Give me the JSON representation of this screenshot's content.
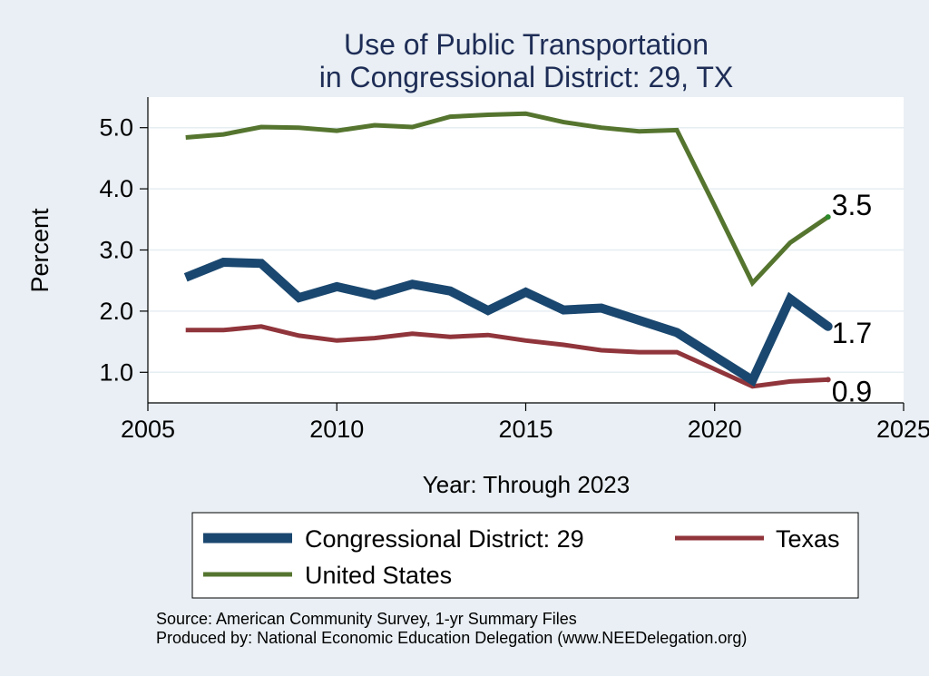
{
  "chart_data": {
    "type": "line",
    "title_lines": [
      "Use of Public Transportation",
      "in Congressional District: 29, TX"
    ],
    "xlabel": "Year: Through 2023",
    "ylabel": "Percent",
    "xlim": [
      2005,
      2025
    ],
    "ylim": [
      0.5,
      5.5
    ],
    "x_ticks": [
      2005,
      2010,
      2015,
      2020,
      2025
    ],
    "y_ticks": [
      1.0,
      2.0,
      3.0,
      4.0,
      5.0
    ],
    "y_tick_labels": [
      "1.0",
      "2.0",
      "3.0",
      "4.0",
      "5.0"
    ],
    "grid": "horizontal",
    "legend_position": "bottom",
    "x": [
      2006,
      2007,
      2008,
      2009,
      2010,
      2011,
      2012,
      2013,
      2014,
      2015,
      2016,
      2017,
      2018,
      2019,
      2020,
      2021,
      2022,
      2023
    ],
    "series": [
      {
        "name": "Congressional District: 29",
        "color": "#1a476f",
        "values": [
          2.55,
          2.8,
          2.78,
          2.22,
          2.4,
          2.26,
          2.44,
          2.33,
          2.01,
          2.31,
          2.02,
          2.05,
          1.85,
          1.65,
          1.26,
          0.87,
          2.2,
          1.75
        ],
        "end_label": "1.7"
      },
      {
        "name": "Texas",
        "color": "#90353b",
        "values": [
          1.69,
          1.69,
          1.75,
          1.6,
          1.52,
          1.56,
          1.63,
          1.58,
          1.61,
          1.52,
          1.45,
          1.36,
          1.33,
          1.33,
          1.05,
          0.77,
          0.85,
          0.88
        ],
        "end_label": "0.9"
      },
      {
        "name": "United States",
        "color": "#55752f",
        "values": [
          4.84,
          4.89,
          5.01,
          5.0,
          4.95,
          5.04,
          5.01,
          5.18,
          5.21,
          5.23,
          5.09,
          5.0,
          4.94,
          4.96,
          3.72,
          2.46,
          3.12,
          3.54
        ],
        "end_label": "3.5"
      }
    ],
    "source_lines": [
      "Source: American Community Survey, 1-yr Summary Files",
      "Produced by: National Economic Education Delegation (www.NEEDelegation.org)"
    ]
  }
}
